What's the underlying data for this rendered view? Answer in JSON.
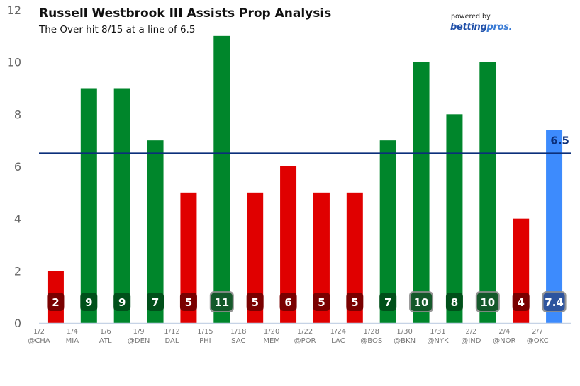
{
  "branding": {
    "powered_by": "powered by",
    "brand_main": "betting",
    "brand_accent": "pros."
  },
  "colors": {
    "over": "#00862b",
    "under": "#e00000",
    "projection": "#3d8bfd",
    "line": "#0b2f7a",
    "axis": "#c6d3e6"
  },
  "chart_data": {
    "type": "bar",
    "title": "Russell Westbrook III Assists Prop Analysis",
    "subtitle": "The Over hit 8/15 at a line of 6.5",
    "xlabel": "",
    "ylabel": "",
    "ylim": [
      0,
      12
    ],
    "yticks": [
      0,
      2,
      4,
      6,
      8,
      10,
      12
    ],
    "grid": false,
    "line_value": 6.5,
    "line_label": "6.5",
    "categories": [
      {
        "date": "1/2",
        "opp": "@CHA"
      },
      {
        "date": "1/4",
        "opp": "MIA"
      },
      {
        "date": "1/6",
        "opp": "ATL"
      },
      {
        "date": "1/9",
        "opp": "@DEN"
      },
      {
        "date": "1/12",
        "opp": "DAL"
      },
      {
        "date": "1/15",
        "opp": "PHI"
      },
      {
        "date": "1/18",
        "opp": "SAC"
      },
      {
        "date": "1/20",
        "opp": "MEM"
      },
      {
        "date": "1/22",
        "opp": "@POR"
      },
      {
        "date": "1/24",
        "opp": "LAC"
      },
      {
        "date": "1/28",
        "opp": "@BOS"
      },
      {
        "date": "1/30",
        "opp": "@BKN"
      },
      {
        "date": "1/31",
        "opp": "@NYK"
      },
      {
        "date": "2/2",
        "opp": "@IND"
      },
      {
        "date": "2/4",
        "opp": "@NOR"
      },
      {
        "date": "2/7",
        "opp": "@OKC"
      }
    ],
    "values": [
      2,
      9,
      9,
      7,
      5,
      11,
      5,
      6,
      5,
      5,
      7,
      10,
      8,
      10,
      4,
      7.4
    ],
    "labels": [
      "2",
      "9",
      "9",
      "7",
      "5",
      "11",
      "5",
      "6",
      "5",
      "5",
      "7",
      "10",
      "8",
      "10",
      "4",
      "7.4"
    ],
    "result": [
      "under",
      "over",
      "over",
      "over",
      "under",
      "over",
      "under",
      "under",
      "under",
      "under",
      "over",
      "over",
      "over",
      "over",
      "under",
      "projection"
    ]
  }
}
